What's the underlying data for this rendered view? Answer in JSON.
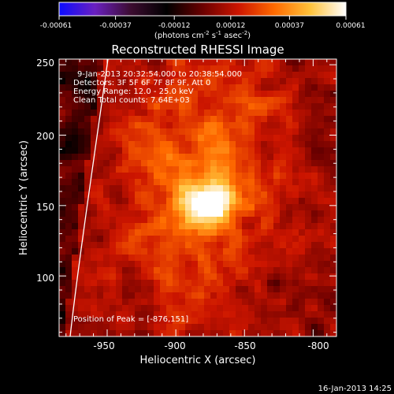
{
  "title": "Reconstructed RHESSI Image",
  "colorbar": {
    "ticks": [
      "-0.00061",
      "-0.00037",
      "-0.00012",
      "0.00012",
      "0.00037",
      "0.00061"
    ],
    "unit_main": "(photons cm",
    "unit_exp1": "-2",
    "unit_mid": " s",
    "unit_exp2": "-1",
    "unit_tail": " asec",
    "unit_exp3": "-2",
    "unit_close": ")",
    "colors": [
      "#0b0bff",
      "#6a20c0",
      "#3c0c30",
      "#000000",
      "#6a0000",
      "#cc1500",
      "#ff6a00",
      "#ffc23a",
      "#ffffff"
    ]
  },
  "plot": {
    "xlabel": "Heliocentric X (arcsec)",
    "ylabel": "Heliocentric Y (arcsec)",
    "xticks": [
      "-950",
      "-900",
      "-850",
      "-800"
    ],
    "yticks": [
      "100",
      "150",
      "200",
      "250"
    ],
    "info": {
      "line1": "9-Jan-2013 20:32:54.000 to 20:38:54.000",
      "line2": "Detectors: 3F 5F 6F 7F 8F 9F, Att 0",
      "line3": "Energy Range: 12.0 - 25.0 keV",
      "line4": "Clean   Total counts: 7.64E+03"
    },
    "peak_label": "Position of Peak = [-876,151]"
  },
  "footer_timestamp": "16-Jan-2013 14:25",
  "chart_data": {
    "type": "heatmap",
    "title": "Reconstructed RHESSI Image",
    "xlabel": "Heliocentric X (arcsec)",
    "ylabel": "Heliocentric Y (arcsec)",
    "xlim": [
      -985,
      -783
    ],
    "ylim": [
      57,
      254
    ],
    "xticks": [
      -950,
      -900,
      -850,
      -800
    ],
    "yticks": [
      100,
      150,
      200,
      250
    ],
    "colorbar_range": [
      -0.00061,
      0.00061
    ],
    "colorbar_ticks": [
      -0.00061,
      -0.00037,
      -0.00012,
      0.00012,
      0.00037,
      0.00061
    ],
    "peak_position": [
      -876,
      151
    ],
    "legend": "none",
    "grid": false
  }
}
